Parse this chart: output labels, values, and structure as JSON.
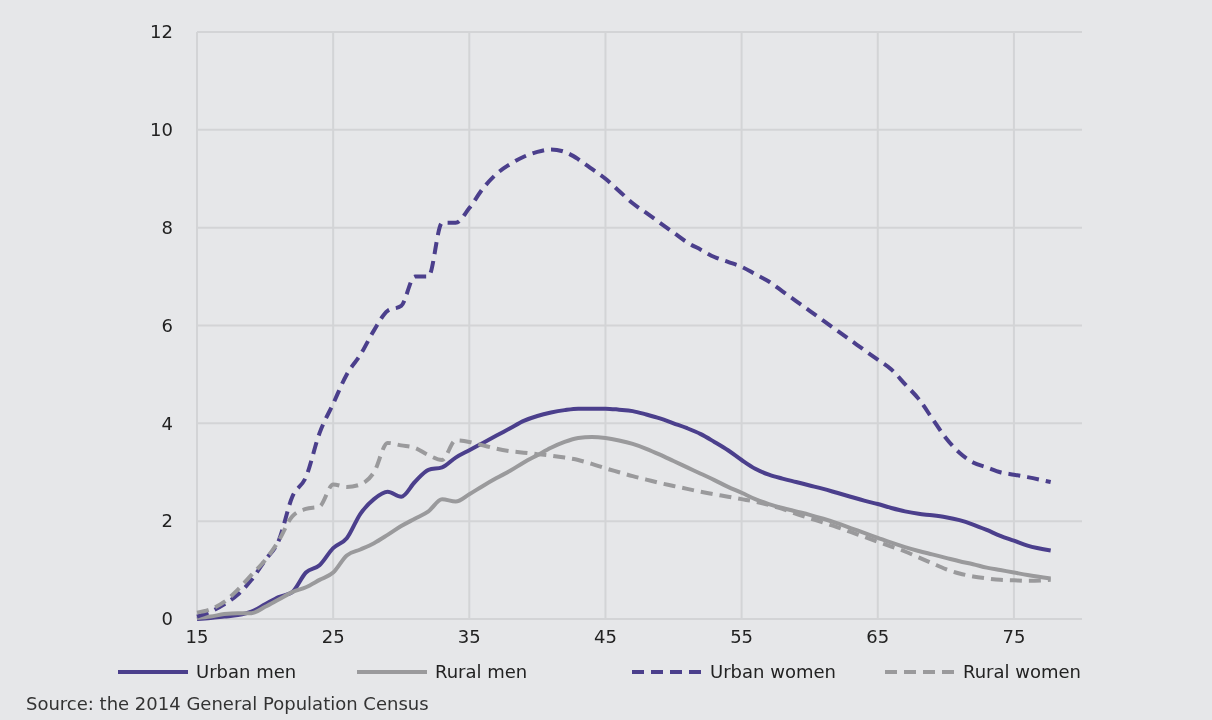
{
  "chart_data": {
    "type": "line",
    "x": [
      15,
      16,
      17,
      18,
      19,
      20,
      21,
      22,
      23,
      24,
      25,
      26,
      27,
      28,
      29,
      30,
      31,
      32,
      33,
      34,
      35,
      36,
      37,
      38,
      39,
      40,
      41,
      42,
      43,
      44,
      45,
      46,
      47,
      48,
      49,
      50,
      51,
      52,
      53,
      54,
      55,
      56,
      57,
      58,
      59,
      60,
      61,
      62,
      63,
      64,
      65,
      66,
      67,
      68,
      69,
      70,
      71,
      72,
      73,
      74,
      75,
      76,
      77.7
    ],
    "xlim": [
      15,
      80
    ],
    "xticks": [
      15,
      25,
      35,
      45,
      55,
      65,
      75
    ],
    "ylim": [
      0,
      12
    ],
    "yticks": [
      0,
      2,
      4,
      6,
      8,
      10,
      12
    ],
    "grid": true,
    "legend": "bottom",
    "series": [
      {
        "name": "Urban men",
        "color": "#4b3f8c",
        "line_style": "solid",
        "values": [
          0,
          0.02,
          0.05,
          0.08,
          0.15,
          0.3,
          0.45,
          0.55,
          0.95,
          1.1,
          1.45,
          1.65,
          2.15,
          2.45,
          2.6,
          2.5,
          2.8,
          3.05,
          3.1,
          3.3,
          3.45,
          3.6,
          3.75,
          3.9,
          4.05,
          4.15,
          4.22,
          4.27,
          4.3,
          4.3,
          4.3,
          4.28,
          4.25,
          4.18,
          4.1,
          4.0,
          3.9,
          3.78,
          3.62,
          3.45,
          3.25,
          3.07,
          2.95,
          2.87,
          2.8,
          2.73,
          2.66,
          2.58,
          2.5,
          2.42,
          2.35,
          2.27,
          2.2,
          2.15,
          2.12,
          2.08,
          2.02,
          1.93,
          1.82,
          1.7,
          1.6,
          1.5,
          1.4
        ]
      },
      {
        "name": "Rural men",
        "color": "#9a9a9c",
        "line_style": "solid",
        "values": [
          0.02,
          0.05,
          0.1,
          0.12,
          0.12,
          0.25,
          0.4,
          0.55,
          0.65,
          0.8,
          0.95,
          1.3,
          1.42,
          1.55,
          1.72,
          1.9,
          2.05,
          2.2,
          2.45,
          2.4,
          2.55,
          2.72,
          2.88,
          3.03,
          3.2,
          3.35,
          3.5,
          3.62,
          3.7,
          3.72,
          3.7,
          3.65,
          3.58,
          3.48,
          3.36,
          3.23,
          3.1,
          2.97,
          2.84,
          2.7,
          2.58,
          2.45,
          2.35,
          2.27,
          2.2,
          2.13,
          2.05,
          1.96,
          1.86,
          1.76,
          1.66,
          1.56,
          1.47,
          1.39,
          1.32,
          1.25,
          1.18,
          1.12,
          1.05,
          1.0,
          0.95,
          0.9,
          0.83
        ]
      },
      {
        "name": "Urban women",
        "color": "#4b3f8c",
        "line_style": "dashed",
        "values": [
          0.05,
          0.15,
          0.3,
          0.5,
          0.8,
          1.2,
          1.6,
          2.5,
          2.9,
          3.8,
          4.4,
          5.0,
          5.4,
          5.9,
          6.3,
          6.4,
          7.0,
          7.0,
          8.1,
          8.1,
          8.4,
          8.8,
          9.1,
          9.3,
          9.45,
          9.55,
          9.6,
          9.55,
          9.4,
          9.2,
          9.0,
          8.75,
          8.5,
          8.3,
          8.1,
          7.9,
          7.7,
          7.55,
          7.4,
          7.3,
          7.2,
          7.05,
          6.9,
          6.7,
          6.5,
          6.3,
          6.1,
          5.9,
          5.7,
          5.5,
          5.3,
          5.1,
          4.8,
          4.5,
          4.1,
          3.7,
          3.4,
          3.2,
          3.1,
          3.0,
          2.95,
          2.9,
          2.8
        ]
      },
      {
        "name": "Rural women",
        "color": "#9a9a9c",
        "line_style": "dashed",
        "values": [
          0.13,
          0.2,
          0.35,
          0.6,
          0.9,
          1.2,
          1.6,
          2.1,
          2.25,
          2.3,
          2.75,
          2.7,
          2.75,
          3.0,
          3.6,
          3.55,
          3.5,
          3.35,
          3.25,
          3.65,
          3.62,
          3.55,
          3.48,
          3.43,
          3.4,
          3.37,
          3.34,
          3.3,
          3.25,
          3.17,
          3.08,
          3.0,
          2.92,
          2.85,
          2.78,
          2.72,
          2.66,
          2.6,
          2.55,
          2.5,
          2.45,
          2.4,
          2.33,
          2.25,
          2.15,
          2.06,
          1.97,
          1.88,
          1.78,
          1.68,
          1.58,
          1.48,
          1.38,
          1.26,
          1.14,
          1.02,
          0.93,
          0.87,
          0.83,
          0.8,
          0.79,
          0.78,
          0.8
        ]
      }
    ],
    "annotations": [
      "Source: the 2014 General Population Census"
    ]
  }
}
